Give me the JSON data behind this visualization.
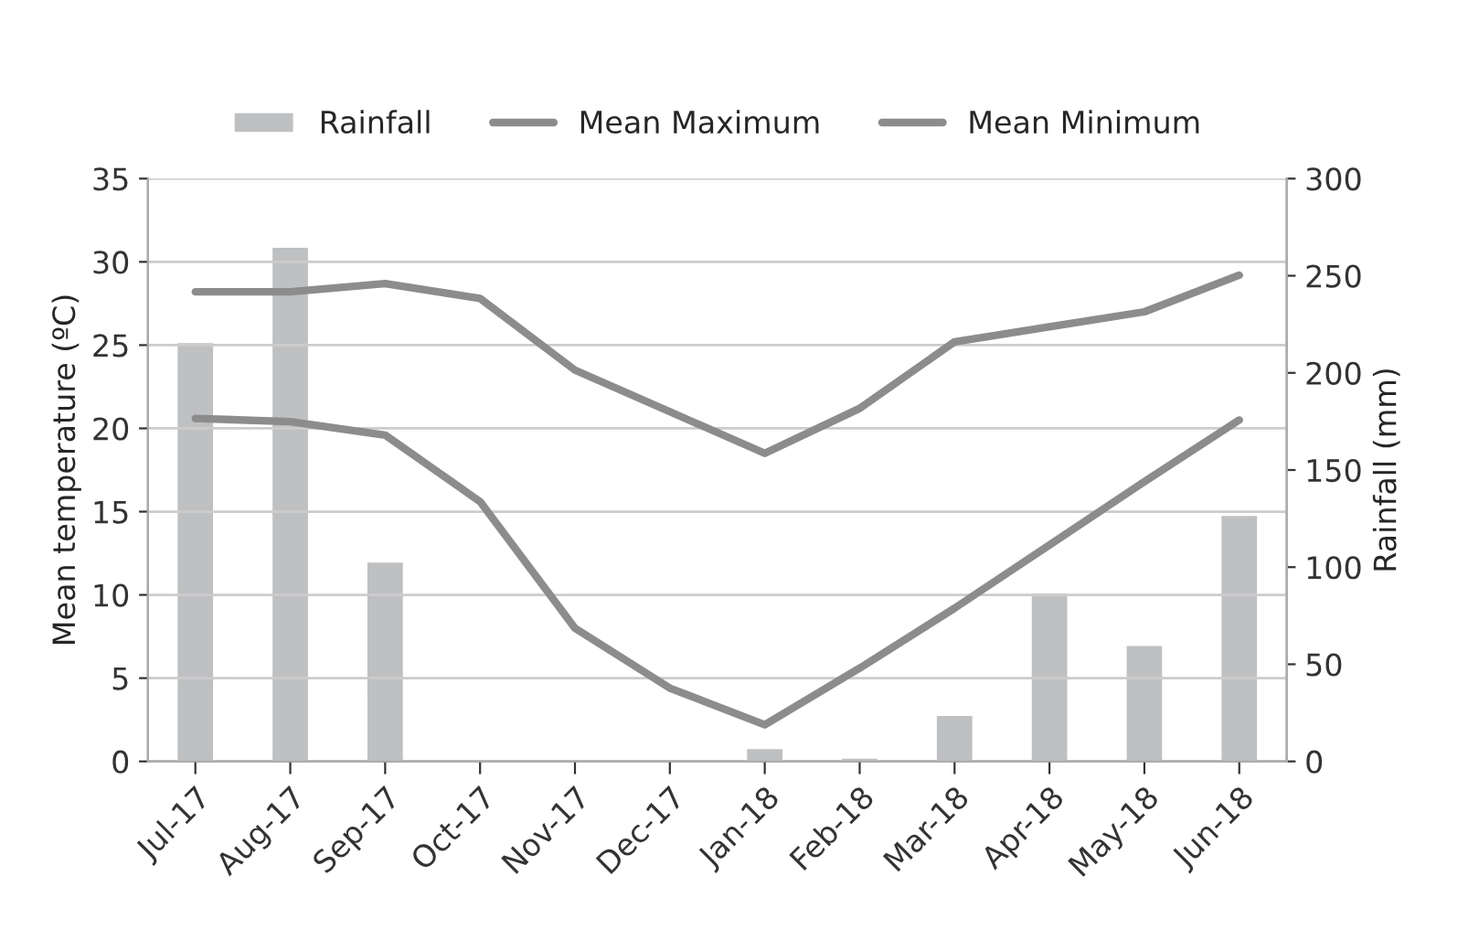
{
  "chart_data": {
    "type": "bar",
    "categories": [
      "Jul-17",
      "Aug-17",
      "Sep-17",
      "Oct-17",
      "Nov-17",
      "Dec-17",
      "Jan-18",
      "Feb-18",
      "Mar-18",
      "Apr-18",
      "May-18",
      "Jun-18"
    ],
    "series": [
      {
        "name": "Rainfall",
        "axis": "y2",
        "color": "#bfc0c2",
        "values": [
          216,
          265,
          103,
          null,
          null,
          null,
          7,
          2,
          24,
          87,
          60,
          127
        ]
      },
      {
        "name": "Mean Maximum",
        "type": "line",
        "color": "#8c8c8c",
        "values": [
          28.2,
          28.2,
          28.7,
          27.8,
          23.5,
          21,
          18.5,
          21.2,
          25.2,
          26.1,
          27,
          29.2
        ]
      },
      {
        "name": "Mean Minimum",
        "type": "line",
        "color": "#8c8c8c",
        "values": [
          20.6,
          20.4,
          19.6,
          15.6,
          8,
          4.4,
          2.2,
          5.6,
          9.2,
          13,
          16.8,
          20.5
        ]
      }
    ],
    "ylabel": "Mean temperature (ºC)",
    "y2label": "Rainfall (mm)",
    "ylim": [
      0,
      35
    ],
    "yticks": [
      0,
      5,
      10,
      15,
      20,
      25,
      30,
      35
    ],
    "y2lim": [
      0,
      300
    ],
    "y2ticks": [
      0,
      50,
      100,
      150,
      200,
      250,
      300
    ],
    "grid": "y",
    "legend": "top",
    "marker": "none",
    "line_style": "solid"
  }
}
